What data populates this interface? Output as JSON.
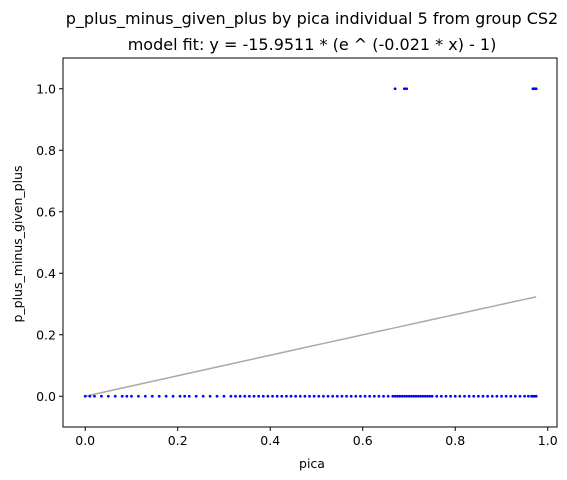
{
  "chart_data": {
    "type": "scatter",
    "title": "p_plus_minus_given_plus by pica individual 5 from group CS2",
    "subtitle": "model fit: y = -15.9511 * (e ^ (-0.021 * x) - 1)",
    "xlabel": "pica",
    "ylabel": "p_plus_minus_given_plus",
    "xlim": [
      -0.048,
      1.02
    ],
    "ylim": [
      -0.1,
      1.1
    ],
    "xticks": [
      0.0,
      0.2,
      0.4,
      0.6,
      0.8,
      1.0
    ],
    "xtick_labels": [
      "0.0",
      "0.2",
      "0.4",
      "0.6",
      "0.8",
      "1.0"
    ],
    "yticks": [
      0.0,
      0.2,
      0.4,
      0.6,
      0.8,
      1.0
    ],
    "ytick_labels": [
      "0.0",
      "0.2",
      "0.4",
      "0.6",
      "0.8",
      "1.0"
    ],
    "grid": false,
    "legend": "none",
    "colors": {
      "points": "#0000ff",
      "fit": "#aaaaaa",
      "axes": "#000000"
    },
    "fit_model": {
      "a": -15.9511,
      "b": -0.021,
      "x_range": [
        0.0,
        0.975
      ]
    },
    "points": [
      {
        "x": 0.67,
        "y": 1
      },
      {
        "x": 0.69,
        "y": 1
      },
      {
        "x": 0.695,
        "y": 1
      },
      {
        "x": 0.968,
        "y": 1
      },
      {
        "x": 0.97,
        "y": 1
      },
      {
        "x": 0.972,
        "y": 1
      },
      {
        "x": 0.975,
        "y": 1
      },
      {
        "x": 0.0,
        "y": 0
      },
      {
        "x": 0.01,
        "y": 0
      },
      {
        "x": 0.02,
        "y": 0
      },
      {
        "x": 0.035,
        "y": 0
      },
      {
        "x": 0.05,
        "y": 0
      },
      {
        "x": 0.065,
        "y": 0
      },
      {
        "x": 0.08,
        "y": 0
      },
      {
        "x": 0.09,
        "y": 0
      },
      {
        "x": 0.1,
        "y": 0
      },
      {
        "x": 0.115,
        "y": 0
      },
      {
        "x": 0.13,
        "y": 0
      },
      {
        "x": 0.145,
        "y": 0
      },
      {
        "x": 0.16,
        "y": 0
      },
      {
        "x": 0.175,
        "y": 0
      },
      {
        "x": 0.19,
        "y": 0
      },
      {
        "x": 0.205,
        "y": 0
      },
      {
        "x": 0.215,
        "y": 0
      },
      {
        "x": 0.225,
        "y": 0
      },
      {
        "x": 0.24,
        "y": 0
      },
      {
        "x": 0.255,
        "y": 0
      },
      {
        "x": 0.27,
        "y": 0
      },
      {
        "x": 0.285,
        "y": 0
      },
      {
        "x": 0.3,
        "y": 0
      },
      {
        "x": 0.315,
        "y": 0
      },
      {
        "x": 0.325,
        "y": 0
      },
      {
        "x": 0.335,
        "y": 0
      },
      {
        "x": 0.345,
        "y": 0
      },
      {
        "x": 0.355,
        "y": 0
      },
      {
        "x": 0.365,
        "y": 0
      },
      {
        "x": 0.375,
        "y": 0
      },
      {
        "x": 0.385,
        "y": 0
      },
      {
        "x": 0.395,
        "y": 0
      },
      {
        "x": 0.405,
        "y": 0
      },
      {
        "x": 0.415,
        "y": 0
      },
      {
        "x": 0.425,
        "y": 0
      },
      {
        "x": 0.435,
        "y": 0
      },
      {
        "x": 0.445,
        "y": 0
      },
      {
        "x": 0.455,
        "y": 0
      },
      {
        "x": 0.465,
        "y": 0
      },
      {
        "x": 0.475,
        "y": 0
      },
      {
        "x": 0.485,
        "y": 0
      },
      {
        "x": 0.495,
        "y": 0
      },
      {
        "x": 0.505,
        "y": 0
      },
      {
        "x": 0.515,
        "y": 0
      },
      {
        "x": 0.525,
        "y": 0
      },
      {
        "x": 0.535,
        "y": 0
      },
      {
        "x": 0.545,
        "y": 0
      },
      {
        "x": 0.555,
        "y": 0
      },
      {
        "x": 0.565,
        "y": 0
      },
      {
        "x": 0.575,
        "y": 0
      },
      {
        "x": 0.585,
        "y": 0
      },
      {
        "x": 0.595,
        "y": 0
      },
      {
        "x": 0.605,
        "y": 0
      },
      {
        "x": 0.615,
        "y": 0
      },
      {
        "x": 0.625,
        "y": 0
      },
      {
        "x": 0.635,
        "y": 0
      },
      {
        "x": 0.645,
        "y": 0
      },
      {
        "x": 0.655,
        "y": 0
      },
      {
        "x": 0.665,
        "y": 0
      },
      {
        "x": 0.67,
        "y": 0
      },
      {
        "x": 0.675,
        "y": 0
      },
      {
        "x": 0.68,
        "y": 0
      },
      {
        "x": 0.685,
        "y": 0
      },
      {
        "x": 0.69,
        "y": 0
      },
      {
        "x": 0.695,
        "y": 0
      },
      {
        "x": 0.7,
        "y": 0
      },
      {
        "x": 0.705,
        "y": 0
      },
      {
        "x": 0.71,
        "y": 0
      },
      {
        "x": 0.715,
        "y": 0
      },
      {
        "x": 0.72,
        "y": 0
      },
      {
        "x": 0.725,
        "y": 0
      },
      {
        "x": 0.73,
        "y": 0
      },
      {
        "x": 0.735,
        "y": 0
      },
      {
        "x": 0.74,
        "y": 0
      },
      {
        "x": 0.745,
        "y": 0
      },
      {
        "x": 0.75,
        "y": 0
      },
      {
        "x": 0.76,
        "y": 0
      },
      {
        "x": 0.77,
        "y": 0
      },
      {
        "x": 0.78,
        "y": 0
      },
      {
        "x": 0.79,
        "y": 0
      },
      {
        "x": 0.8,
        "y": 0
      },
      {
        "x": 0.81,
        "y": 0
      },
      {
        "x": 0.82,
        "y": 0
      },
      {
        "x": 0.83,
        "y": 0
      },
      {
        "x": 0.84,
        "y": 0
      },
      {
        "x": 0.85,
        "y": 0
      },
      {
        "x": 0.86,
        "y": 0
      },
      {
        "x": 0.87,
        "y": 0
      },
      {
        "x": 0.88,
        "y": 0
      },
      {
        "x": 0.89,
        "y": 0
      },
      {
        "x": 0.9,
        "y": 0
      },
      {
        "x": 0.91,
        "y": 0
      },
      {
        "x": 0.92,
        "y": 0
      },
      {
        "x": 0.93,
        "y": 0
      },
      {
        "x": 0.94,
        "y": 0
      },
      {
        "x": 0.95,
        "y": 0
      },
      {
        "x": 0.958,
        "y": 0
      },
      {
        "x": 0.965,
        "y": 0
      },
      {
        "x": 0.968,
        "y": 0
      },
      {
        "x": 0.97,
        "y": 0
      },
      {
        "x": 0.972,
        "y": 0
      },
      {
        "x": 0.975,
        "y": 0
      }
    ]
  }
}
